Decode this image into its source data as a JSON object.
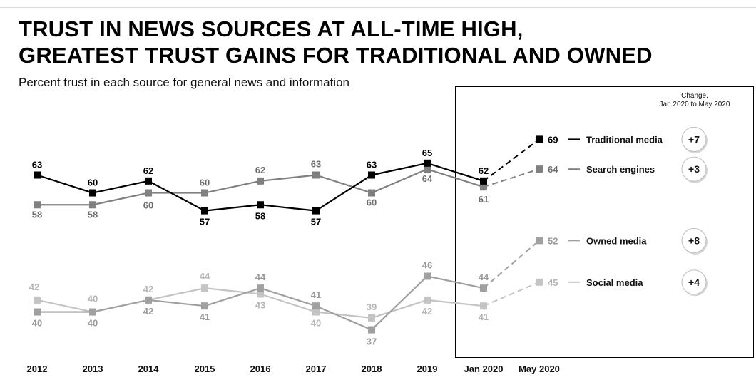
{
  "header": {
    "title_line1": "TRUST IN NEWS SOURCES AT ALL-TIME HIGH,",
    "title_line2": "GREATEST TRUST GAINS FOR TRADITIONAL AND OWNED",
    "subtitle": "Percent trust in each source for general news and information"
  },
  "chart_data": {
    "type": "line",
    "title": "TRUST IN NEWS SOURCES AT ALL-TIME HIGH, GREATEST TRUST GAINS FOR TRADITIONAL AND OWNED",
    "subtitle": "Percent trust in each source for general news and information",
    "categories": [
      "2012",
      "2013",
      "2014",
      "2015",
      "2016",
      "2017",
      "2018",
      "2019",
      "Jan 2020",
      "May 2020"
    ],
    "change_header": [
      "Change,",
      "Jan 2020 to May 2020"
    ],
    "dashed_from_index": 8,
    "series": [
      {
        "name": "Traditional media",
        "values": [
          63,
          60,
          62,
          57,
          58,
          57,
          63,
          65,
          62,
          69
        ],
        "change": "+7",
        "color": "#000000",
        "label_color": "#000000"
      },
      {
        "name": "Search engines",
        "values": [
          58,
          58,
          60,
          60,
          62,
          63,
          60,
          64,
          61,
          64
        ],
        "change": "+3",
        "color": "#808080",
        "label_color": "#6e6e6e"
      },
      {
        "name": "Owned media",
        "values": [
          40,
          40,
          42,
          41,
          44,
          41,
          37,
          46,
          44,
          52
        ],
        "change": "+8",
        "color": "#a0a0a0",
        "label_color": "#9a9a9a"
      },
      {
        "name": "Social media",
        "values": [
          42,
          40,
          42,
          44,
          43,
          40,
          39,
          42,
          41,
          45
        ],
        "change": "+4",
        "color": "#c4c4c4",
        "label_color": "#b5b5b5"
      }
    ]
  }
}
